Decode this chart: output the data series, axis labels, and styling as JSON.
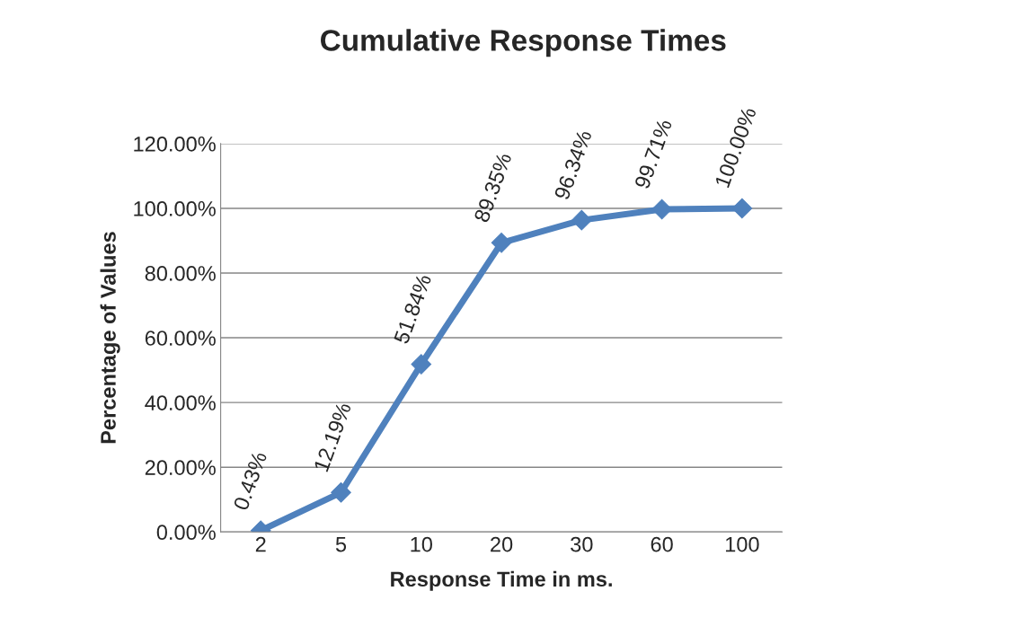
{
  "chart_data": {
    "type": "line",
    "title": "Cumulative Response Times",
    "xlabel": "Response Time in ms.",
    "ylabel": "Percentage of Values",
    "categories": [
      "2",
      "5",
      "10",
      "20",
      "30",
      "60",
      "100"
    ],
    "series": [
      {
        "color": "#4f81bd",
        "values": [
          0.43,
          12.19,
          51.84,
          89.35,
          96.34,
          99.71,
          100.0
        ],
        "value_labels": [
          "0.43%",
          "12.19%",
          "51.84%",
          "89.35%",
          "96.34%",
          "99.71%",
          "100.00%"
        ]
      }
    ],
    "ylim": [
      0,
      120
    ],
    "yticks": [
      {
        "value": 0,
        "label": "0.00%"
      },
      {
        "value": 20,
        "label": "20.00%"
      },
      {
        "value": 40,
        "label": "40.00%"
      },
      {
        "value": 60,
        "label": "60.00%"
      },
      {
        "value": 80,
        "label": "80.00%"
      },
      {
        "value": 100,
        "label": "100.00%"
      },
      {
        "value": 120,
        "label": "120.00%"
      }
    ],
    "grid": "y",
    "marker": "diamond",
    "line_style": "solid"
  }
}
